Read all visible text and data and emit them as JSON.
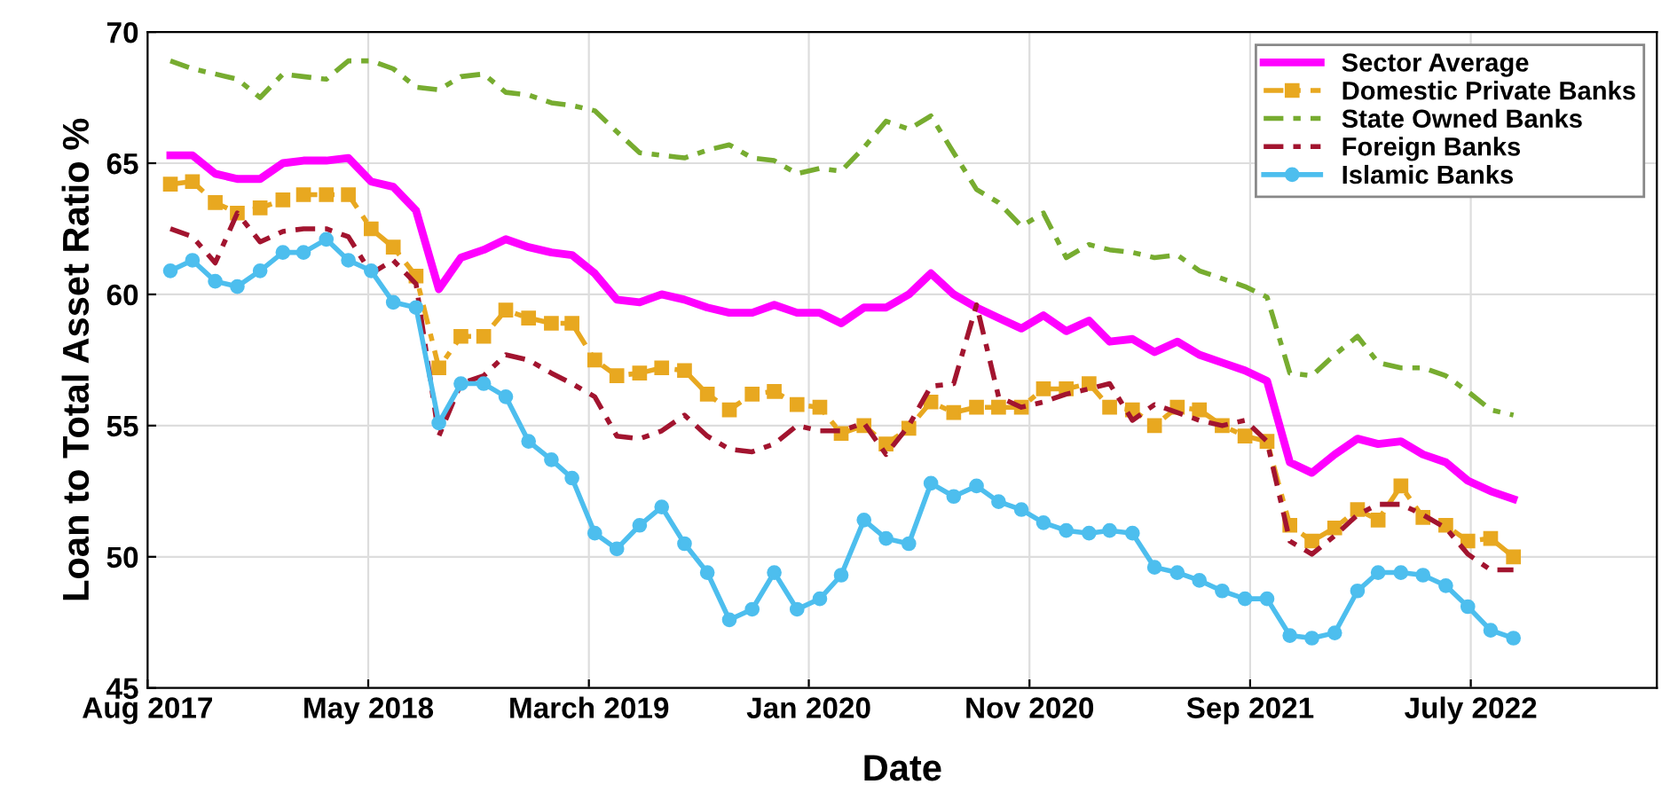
{
  "chart_data": {
    "type": "line",
    "xlabel": "Date",
    "ylabel": "Loan to Total Asset Ratio %",
    "x": [
      "2017-09",
      "2017-10",
      "2017-11",
      "2017-12",
      "2018-01",
      "2018-02",
      "2018-03",
      "2018-04",
      "2018-05",
      "2018-06",
      "2018-07",
      "2018-08",
      "2018-09",
      "2018-10",
      "2018-11",
      "2018-12",
      "2019-01",
      "2019-02",
      "2019-03",
      "2019-04",
      "2019-05",
      "2019-06",
      "2019-07",
      "2019-08",
      "2019-09",
      "2019-10",
      "2019-11",
      "2019-12",
      "2020-01",
      "2020-02",
      "2020-03",
      "2020-04",
      "2020-05",
      "2020-06",
      "2020-07",
      "2020-08",
      "2020-09",
      "2020-10",
      "2020-11",
      "2020-12",
      "2021-01",
      "2021-02",
      "2021-03",
      "2021-04",
      "2021-05",
      "2021-06",
      "2021-07",
      "2021-08",
      "2021-09",
      "2021-10",
      "2021-11",
      "2021-12",
      "2022-01",
      "2022-02",
      "2022-03",
      "2022-04",
      "2022-05",
      "2022-06",
      "2022-07",
      "2022-08",
      "2022-09"
    ],
    "series": [
      {
        "name": "Sector Average",
        "color": "#ff00ff",
        "line_style": "solid",
        "marker": "none",
        "values": [
          65.3,
          65.3,
          64.6,
          64.4,
          64.4,
          65.0,
          65.1,
          65.1,
          65.2,
          64.3,
          64.1,
          63.2,
          60.2,
          61.4,
          61.7,
          62.1,
          61.8,
          61.6,
          61.5,
          60.8,
          59.8,
          59.7,
          60.0,
          59.8,
          59.5,
          59.3,
          59.3,
          59.6,
          59.3,
          59.3,
          58.9,
          59.5,
          59.5,
          60.0,
          60.8,
          60.0,
          59.5,
          59.1,
          58.7,
          59.2,
          58.6,
          59.0,
          58.2,
          58.3,
          57.8,
          58.2,
          57.7,
          57.4,
          57.1,
          56.7,
          53.6,
          53.2,
          53.9,
          54.5,
          54.3,
          54.4,
          53.9,
          53.6,
          52.9,
          52.5,
          52.2
        ]
      },
      {
        "name": "Domestic Private Banks",
        "color": "#e8a820",
        "line_style": "dashed",
        "marker": "square",
        "values": [
          64.2,
          64.3,
          63.5,
          63.1,
          63.3,
          63.6,
          63.8,
          63.8,
          63.8,
          62.5,
          61.8,
          60.7,
          57.2,
          58.4,
          58.4,
          59.4,
          59.1,
          58.9,
          58.9,
          57.5,
          56.9,
          57.0,
          57.2,
          57.1,
          56.2,
          55.6,
          56.2,
          56.3,
          55.8,
          55.7,
          54.7,
          55.0,
          54.3,
          54.9,
          55.9,
          55.5,
          55.7,
          55.7,
          55.7,
          56.4,
          56.4,
          56.6,
          55.7,
          55.6,
          55.0,
          55.7,
          55.6,
          55.0,
          54.6,
          54.4,
          51.2,
          50.6,
          51.1,
          51.8,
          51.4,
          52.7,
          51.5,
          51.2,
          50.6,
          50.7,
          50.0
        ]
      },
      {
        "name": "State Owned Banks",
        "color": "#77ac30",
        "line_style": "dashed",
        "marker": "none",
        "values": [
          68.9,
          68.6,
          68.4,
          68.2,
          67.5,
          68.4,
          68.3,
          68.2,
          68.9,
          68.9,
          68.6,
          67.9,
          67.8,
          68.3,
          68.4,
          67.7,
          67.6,
          67.3,
          67.2,
          67.0,
          66.2,
          65.4,
          65.3,
          65.2,
          65.5,
          65.7,
          65.2,
          65.1,
          64.6,
          64.8,
          64.7,
          65.6,
          66.6,
          66.3,
          66.8,
          65.4,
          64.0,
          63.5,
          62.6,
          63.1,
          61.4,
          61.9,
          61.7,
          61.6,
          61.4,
          61.5,
          60.9,
          60.6,
          60.3,
          59.9,
          57.0,
          56.9,
          57.7,
          58.4,
          57.4,
          57.2,
          57.2,
          56.9,
          56.3,
          55.6,
          55.4
        ]
      },
      {
        "name": "Foreign Banks",
        "color": "#a2142f",
        "line_style": "dashed",
        "marker": "none",
        "values": [
          62.5,
          62.2,
          61.2,
          63.1,
          62.0,
          62.4,
          62.5,
          62.5,
          62.2,
          60.8,
          61.3,
          60.4,
          54.6,
          56.6,
          56.9,
          57.7,
          57.5,
          57.0,
          56.6,
          56.1,
          54.6,
          54.5,
          54.8,
          55.4,
          54.6,
          54.1,
          54.0,
          54.3,
          55.0,
          54.8,
          54.8,
          55.1,
          53.9,
          55.0,
          56.5,
          56.6,
          59.6,
          56.1,
          55.7,
          55.9,
          56.2,
          56.4,
          56.6,
          55.2,
          55.8,
          55.5,
          55.2,
          55.0,
          55.2,
          54.4,
          50.6,
          50.1,
          50.8,
          51.6,
          52.0,
          52.0,
          51.6,
          51.1,
          50.1,
          49.5,
          49.5
        ]
      },
      {
        "name": "Islamic Banks",
        "color": "#4dbeee",
        "line_style": "solid",
        "marker": "circle",
        "values": [
          60.9,
          61.3,
          60.5,
          60.3,
          60.9,
          61.6,
          61.6,
          62.1,
          61.3,
          60.9,
          59.7,
          59.5,
          55.1,
          56.6,
          56.6,
          56.1,
          54.4,
          53.7,
          53.0,
          50.9,
          50.3,
          51.2,
          51.9,
          50.5,
          49.4,
          47.6,
          48.0,
          49.4,
          48.0,
          48.4,
          49.3,
          51.4,
          50.7,
          50.5,
          52.8,
          52.3,
          52.7,
          52.1,
          51.8,
          51.3,
          51.0,
          50.9,
          51.0,
          50.9,
          49.6,
          49.4,
          49.1,
          48.7,
          48.4,
          48.4,
          47.0,
          46.9,
          47.1,
          48.7,
          49.4,
          49.4,
          49.3,
          48.9,
          48.1,
          47.2,
          46.9
        ]
      }
    ],
    "xlim": [
      "2017-08-01",
      "2023-03-15"
    ],
    "xticks": [
      {
        "value": "2017-08-01",
        "label": "Aug 2017"
      },
      {
        "value": "2018-05-28",
        "label": "May 2018"
      },
      {
        "value": "2019-03-24",
        "label": "March 2019"
      },
      {
        "value": "2020-01-17",
        "label": "Jan 2020"
      },
      {
        "value": "2020-11-12",
        "label": "Nov 2020"
      },
      {
        "value": "2021-09-08",
        "label": "Sep 2021"
      },
      {
        "value": "2022-07-05",
        "label": "July 2022"
      }
    ],
    "ylim": [
      45,
      70
    ],
    "yticks": [
      45,
      50,
      55,
      60,
      65,
      70
    ],
    "grid": true,
    "legend": "top right"
  }
}
